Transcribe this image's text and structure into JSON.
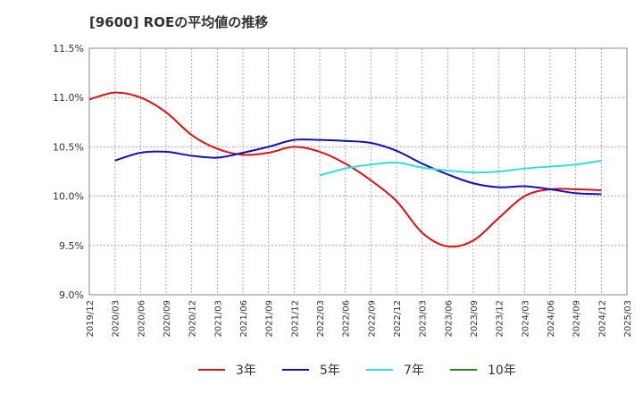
{
  "chart_data": {
    "type": "line",
    "title": "[9600]  ROEの平均値の推移",
    "xlabel": "",
    "ylabel": "",
    "ylim": [
      9.0,
      11.5
    ],
    "yticks": [
      "9.0%",
      "9.5%",
      "10.0%",
      "10.5%",
      "11.0%",
      "11.5%"
    ],
    "ytick_values": [
      9.0,
      9.5,
      10.0,
      10.5,
      11.0,
      11.5
    ],
    "x_labels": [
      "2019/12",
      "2020/03",
      "2020/06",
      "2020/09",
      "2020/12",
      "2021/03",
      "2021/06",
      "2021/09",
      "2021/12",
      "2022/03",
      "2022/06",
      "2022/09",
      "2022/12",
      "2023/03",
      "2023/06",
      "2023/09",
      "2023/12",
      "2024/03",
      "2024/06",
      "2024/09",
      "2024/12",
      "2025/03"
    ],
    "grid": true,
    "legend_position": "bottom",
    "series": [
      {
        "name": "3年",
        "color": "#dd1111",
        "values": [
          10.98,
          11.05,
          11.0,
          10.85,
          10.62,
          10.48,
          10.42,
          10.44,
          10.5,
          10.45,
          10.33,
          10.16,
          9.95,
          9.63,
          9.49,
          9.55,
          9.78,
          10.0,
          10.07,
          10.07,
          10.06,
          null
        ]
      },
      {
        "name": "5年",
        "color": "#1111bb",
        "values": [
          null,
          10.36,
          10.44,
          10.45,
          10.41,
          10.39,
          10.44,
          10.5,
          10.57,
          10.57,
          10.56,
          10.54,
          10.46,
          10.33,
          10.22,
          10.13,
          10.09,
          10.1,
          10.07,
          10.03,
          10.02,
          null
        ]
      },
      {
        "name": "7年",
        "color": "#33dddd",
        "values": [
          null,
          null,
          null,
          null,
          null,
          null,
          null,
          null,
          null,
          10.21,
          10.28,
          10.32,
          10.34,
          10.29,
          10.26,
          10.24,
          10.25,
          10.28,
          10.3,
          10.32,
          10.36,
          null
        ]
      },
      {
        "name": "10年",
        "color": "#228822",
        "values": [
          null,
          null,
          null,
          null,
          null,
          null,
          null,
          null,
          null,
          null,
          null,
          null,
          null,
          null,
          null,
          null,
          null,
          null,
          null,
          null,
          null,
          null
        ]
      }
    ]
  }
}
